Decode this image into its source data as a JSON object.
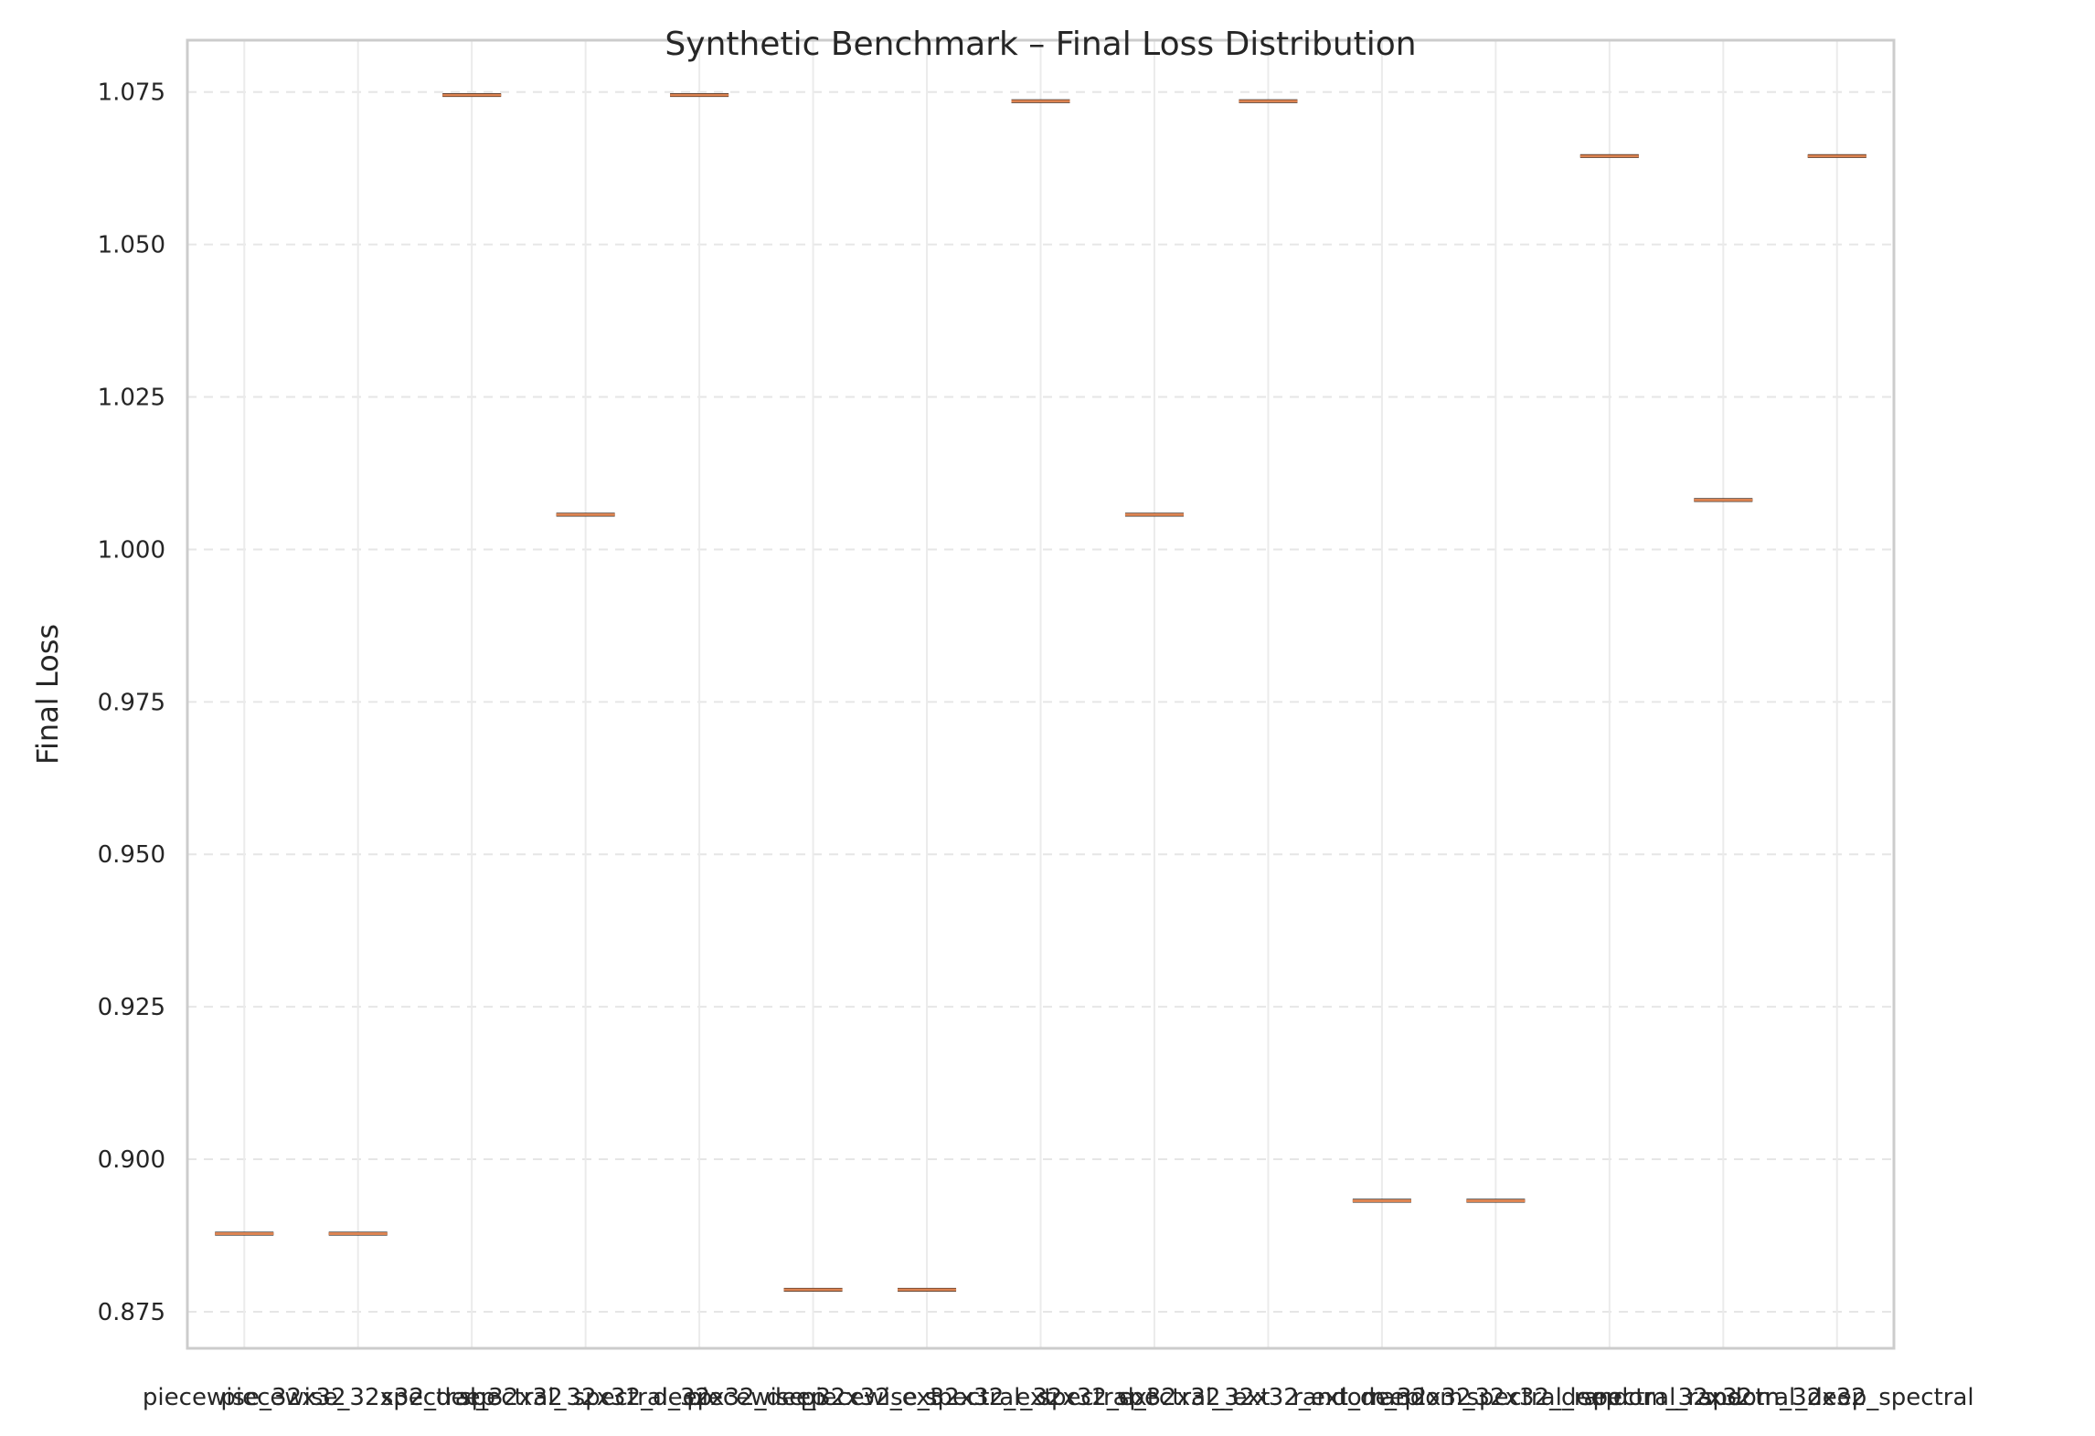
{
  "chart_data": {
    "type": "box",
    "title": "Synthetic Benchmark – Final Loss Distribution",
    "xlabel": "",
    "ylabel": "Final Loss",
    "ylim": [
      0.869,
      1.0835
    ],
    "yticks": [
      "0.875",
      "0.900",
      "0.925",
      "0.950",
      "0.975",
      "1.000",
      "1.025",
      "1.050",
      "1.075"
    ],
    "ytick_values": [
      0.875,
      0.9,
      0.925,
      0.95,
      0.975,
      1.0,
      1.025,
      1.05,
      1.075
    ],
    "grid": true,
    "categories": [
      "piecewise_32x32",
      "piecewise_32x32_deep",
      "spectral_32x32",
      "spectral_32x32_deep",
      "spectral_32x32_deep",
      "piecewise_32x32_ext",
      "piecewise_32x32_ext",
      "spectral_32x32_ext",
      "spectral_32x32_ext",
      "spectral_32x32_ext_deep",
      "random_32x32",
      "random_32x32_deep",
      "spectral_random_32x32",
      "spectral_random_32x32",
      "spectral_deep_spectral"
    ],
    "values": [
      0.8878,
      0.8878,
      1.0745,
      1.0057,
      1.0745,
      0.8786,
      0.8786,
      1.0735,
      1.0057,
      1.0735,
      0.8932,
      0.8932,
      1.0645,
      1.0081,
      1.0645
    ],
    "colors": {
      "median": "#dd8452",
      "box": "#000000",
      "grid": "#e6e6e6",
      "spine": "#cccccc"
    }
  }
}
